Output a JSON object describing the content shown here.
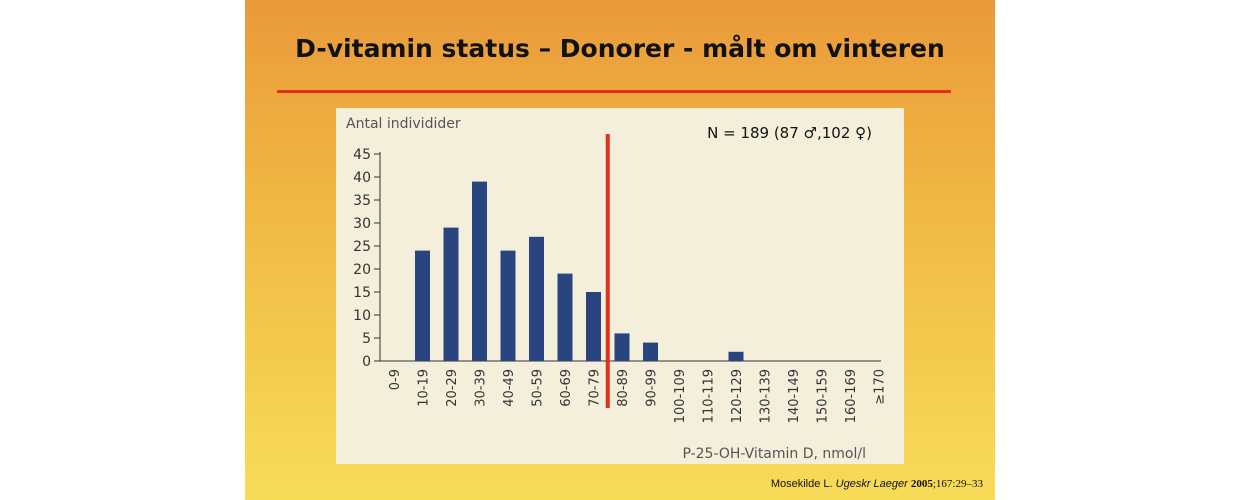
{
  "slide": {
    "title": "D-vitamin status – Donorer - målt om vinteren",
    "accent_color": "#e0301e",
    "citation": {
      "author": "Mosekilde L.",
      "journal": "Ugeskr Laeger",
      "year": "2005",
      "pages": ";167:29–33"
    }
  },
  "chart_data": {
    "type": "bar",
    "ylabel": "Antal individider",
    "xlabel": "P-25-OH-Vitamin D, nmol/l",
    "annotation": "N = 189 (87 ♂,102 ♀)",
    "categories": [
      "0-9",
      "10-19",
      "20-29",
      "30-39",
      "40-49",
      "50-59",
      "60-69",
      "70-79",
      "80-89",
      "90-99",
      "100-109",
      "110-119",
      "120-129",
      "130-139",
      "140-149",
      "150-159",
      "160-169",
      "≥170"
    ],
    "values": [
      0,
      24,
      29,
      39,
      24,
      27,
      19,
      15,
      6,
      4,
      0,
      0,
      2,
      0,
      0,
      0,
      0,
      0
    ],
    "ylim": [
      0,
      45
    ],
    "yticks": [
      0,
      5,
      10,
      15,
      20,
      25,
      30,
      35,
      40,
      45
    ],
    "threshold_between": [
      "70-79",
      "80-89"
    ],
    "bar_color": "#2a4480",
    "threshold_color": "#e0301e",
    "grid": false
  }
}
